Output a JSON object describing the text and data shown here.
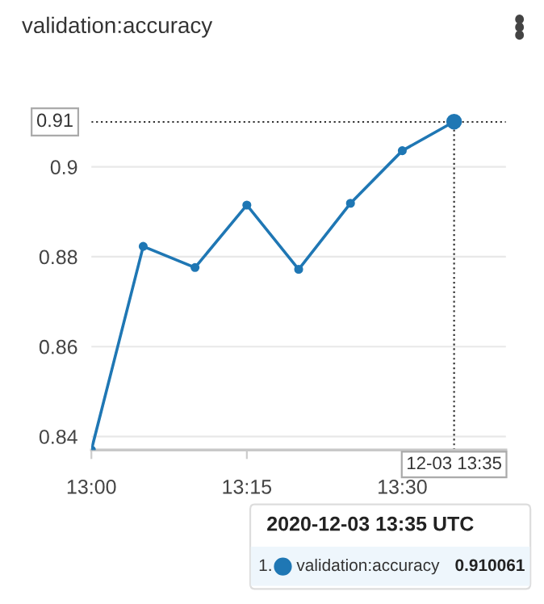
{
  "chart_data": {
    "type": "line",
    "title": "validation:accuracy",
    "x": [
      "2020-12-03T13:00",
      "2020-12-03T13:05",
      "2020-12-03T13:10",
      "2020-12-03T13:15",
      "2020-12-03T13:20",
      "2020-12-03T13:25",
      "2020-12-03T13:30",
      "2020-12-03T13:35"
    ],
    "series": [
      {
        "name": "validation:accuracy",
        "color": "#1f77b4",
        "values": [
          0.837,
          0.8823,
          0.8776,
          0.8915,
          0.8772,
          0.8919,
          0.9036,
          0.910061
        ]
      }
    ],
    "xlim": [
      "2020-12-03T13:00",
      "2020-12-03T13:40"
    ],
    "xticks": [
      {
        "value": "2020-12-03T13:00",
        "label": "13:00"
      },
      {
        "value": "2020-12-03T13:15",
        "label": "13:15"
      },
      {
        "value": "2020-12-03T13:30",
        "label": "13:30"
      }
    ],
    "ylim": [
      0.837,
      0.912
    ],
    "yticks": [
      0.84,
      0.86,
      0.88,
      0.9
    ],
    "grid": "y",
    "marker": "circle",
    "line_style": "solid",
    "legend": "bottom",
    "legend_title": "2020-12-03 13:35 UTC",
    "ref_lines": [
      {
        "axis": "y",
        "value": 0.91,
        "label": "0.91",
        "line_style": "dotted",
        "color": "#333333"
      },
      {
        "axis": "x",
        "value": "2020-12-03T13:35",
        "label": "12-03 13:35",
        "line_style": "dotted",
        "color": "#333333"
      }
    ],
    "annotations": [
      "1.",
      "0.910061"
    ]
  }
}
